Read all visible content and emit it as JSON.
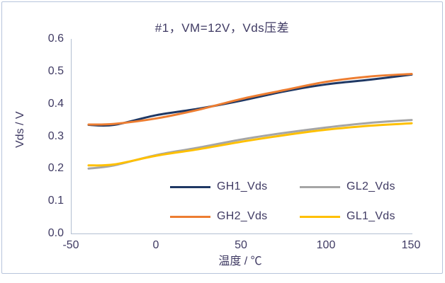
{
  "chart_data": {
    "type": "line",
    "title": "#1，VM=12V，Vds压差",
    "xlabel": "温度 / ℃",
    "ylabel": "Vds / V",
    "xlim": [
      -50,
      150
    ],
    "ylim": [
      0.0,
      0.6
    ],
    "x_ticks": [
      "-50",
      "0",
      "50",
      "100",
      "150"
    ],
    "x_tick_values": [
      -50,
      0,
      50,
      100,
      150
    ],
    "y_ticks": [
      "0.0",
      "0.1",
      "0.2",
      "0.3",
      "0.4",
      "0.5",
      "0.6"
    ],
    "y_tick_values": [
      0.0,
      0.1,
      0.2,
      0.3,
      0.4,
      0.5,
      0.6
    ],
    "grid": false,
    "legend_position": "inside-bottom-center",
    "x": [
      -40,
      -25,
      0,
      25,
      50,
      75,
      100,
      125,
      150
    ],
    "series": [
      {
        "name": "GH1_Vds",
        "color": "#1f3864",
        "values": [
          0.335,
          0.335,
          0.365,
          0.385,
          0.41,
          0.438,
          0.46,
          0.474,
          0.49
        ]
      },
      {
        "name": "GH2_Vds",
        "color": "#ed7d31",
        "values": [
          0.336,
          0.338,
          0.355,
          0.382,
          0.415,
          0.442,
          0.468,
          0.484,
          0.492
        ]
      },
      {
        "name": "GL2_Vds",
        "color": "#a5a5a5",
        "values": [
          0.2,
          0.21,
          0.242,
          0.265,
          0.29,
          0.31,
          0.327,
          0.341,
          0.35
        ]
      },
      {
        "name": "GL1_Vds",
        "color": "#ffc000",
        "values": [
          0.21,
          0.213,
          0.24,
          0.26,
          0.283,
          0.303,
          0.32,
          0.332,
          0.34
        ]
      }
    ]
  },
  "legend": {
    "items": [
      {
        "label": "GH1_Vds",
        "color": "#1f3864"
      },
      {
        "label": "GL2_Vds",
        "color": "#a5a5a5"
      },
      {
        "label": "GH2_Vds",
        "color": "#ed7d31"
      },
      {
        "label": "GL1_Vds",
        "color": "#ffc000"
      }
    ]
  },
  "colors": {
    "text": "#3f3a63",
    "axis_line": "#b3bfd2",
    "frame_border": "#b7c4dc",
    "background": "#ffffff"
  }
}
